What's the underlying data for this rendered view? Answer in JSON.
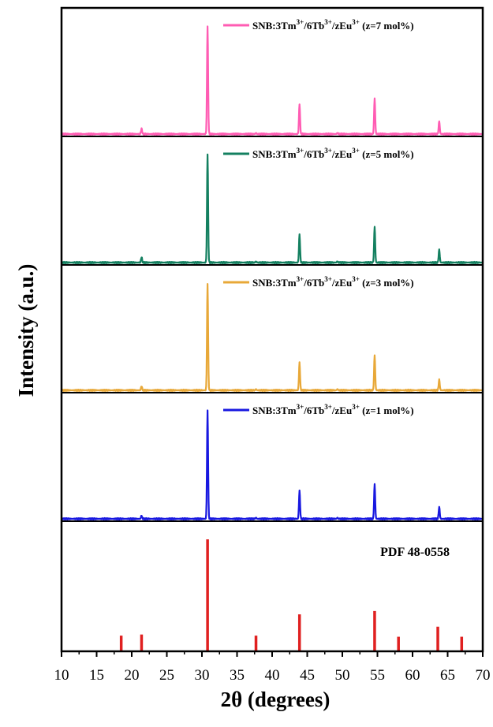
{
  "chart_data": {
    "type": "line",
    "xlabel": "2θ (degrees)",
    "ylabel": "Intensity (a.u.)",
    "xlim": [
      10,
      70
    ],
    "xticks": [
      "10",
      "15",
      "20",
      "25",
      "30",
      "35",
      "40",
      "45",
      "50",
      "55",
      "60",
      "65",
      "70"
    ],
    "grid": false,
    "panels": [
      {
        "kind": "pattern",
        "legend": {
          "prefix": "SNB:3Tm",
          "sup1": "3+",
          "mid1": "/6Tb",
          "sup2": "3+",
          "mid2": "/zEu",
          "sup3": "3+",
          "suffix": " (z=7 mol%)"
        },
        "color": "#ff5cb3",
        "peaks": [
          [
            21.4,
            0.05
          ],
          [
            30.8,
            1.0
          ],
          [
            37.7,
            0.01
          ],
          [
            43.9,
            0.28
          ],
          [
            49.3,
            0.01
          ],
          [
            54.6,
            0.33
          ],
          [
            63.8,
            0.12
          ]
        ]
      },
      {
        "kind": "pattern",
        "legend": {
          "prefix": "SNB:3Tm",
          "sup1": "3+",
          "mid1": "/6Tb",
          "sup2": "3+",
          "mid2": "/zEu",
          "sup3": "3+",
          "suffix": " (z=5 mol%)"
        },
        "color": "#148060",
        "peaks": [
          [
            21.4,
            0.05
          ],
          [
            30.8,
            1.0
          ],
          [
            37.7,
            0.01
          ],
          [
            43.9,
            0.26
          ],
          [
            49.3,
            0.01
          ],
          [
            54.6,
            0.33
          ],
          [
            63.8,
            0.12
          ]
        ]
      },
      {
        "kind": "pattern",
        "legend": {
          "prefix": "SNB:3Tm",
          "sup1": "3+",
          "mid1": "/6Tb",
          "sup2": "3+",
          "mid2": "/zEu",
          "sup3": "3+",
          "suffix": " (z=3 mol%)"
        },
        "color": "#e8a838",
        "peaks": [
          [
            21.4,
            0.04
          ],
          [
            30.8,
            1.0
          ],
          [
            37.7,
            0.01
          ],
          [
            43.9,
            0.26
          ],
          [
            49.3,
            0.01
          ],
          [
            54.6,
            0.33
          ],
          [
            63.8,
            0.1
          ]
        ]
      },
      {
        "kind": "pattern",
        "legend": {
          "prefix": "SNB:3Tm",
          "sup1": "3+",
          "mid1": "/6Tb",
          "sup2": "3+",
          "mid2": "/zEu",
          "sup3": "3+",
          "suffix": " (z=1 mol%)"
        },
        "color": "#1818e0",
        "peaks": [
          [
            21.4,
            0.03
          ],
          [
            30.8,
            1.0
          ],
          [
            37.7,
            0.01
          ],
          [
            43.9,
            0.26
          ],
          [
            49.3,
            0.01
          ],
          [
            54.6,
            0.32
          ],
          [
            63.8,
            0.11
          ]
        ]
      },
      {
        "kind": "reference",
        "label": "PDF 48-0558",
        "color": "#e02020",
        "sticks": [
          [
            18.5,
            0.14
          ],
          [
            21.4,
            0.15
          ],
          [
            30.8,
            1.0
          ],
          [
            37.7,
            0.14
          ],
          [
            43.9,
            0.33
          ],
          [
            54.6,
            0.36
          ],
          [
            58.0,
            0.13
          ],
          [
            63.6,
            0.22
          ],
          [
            67.0,
            0.13
          ]
        ]
      }
    ]
  }
}
